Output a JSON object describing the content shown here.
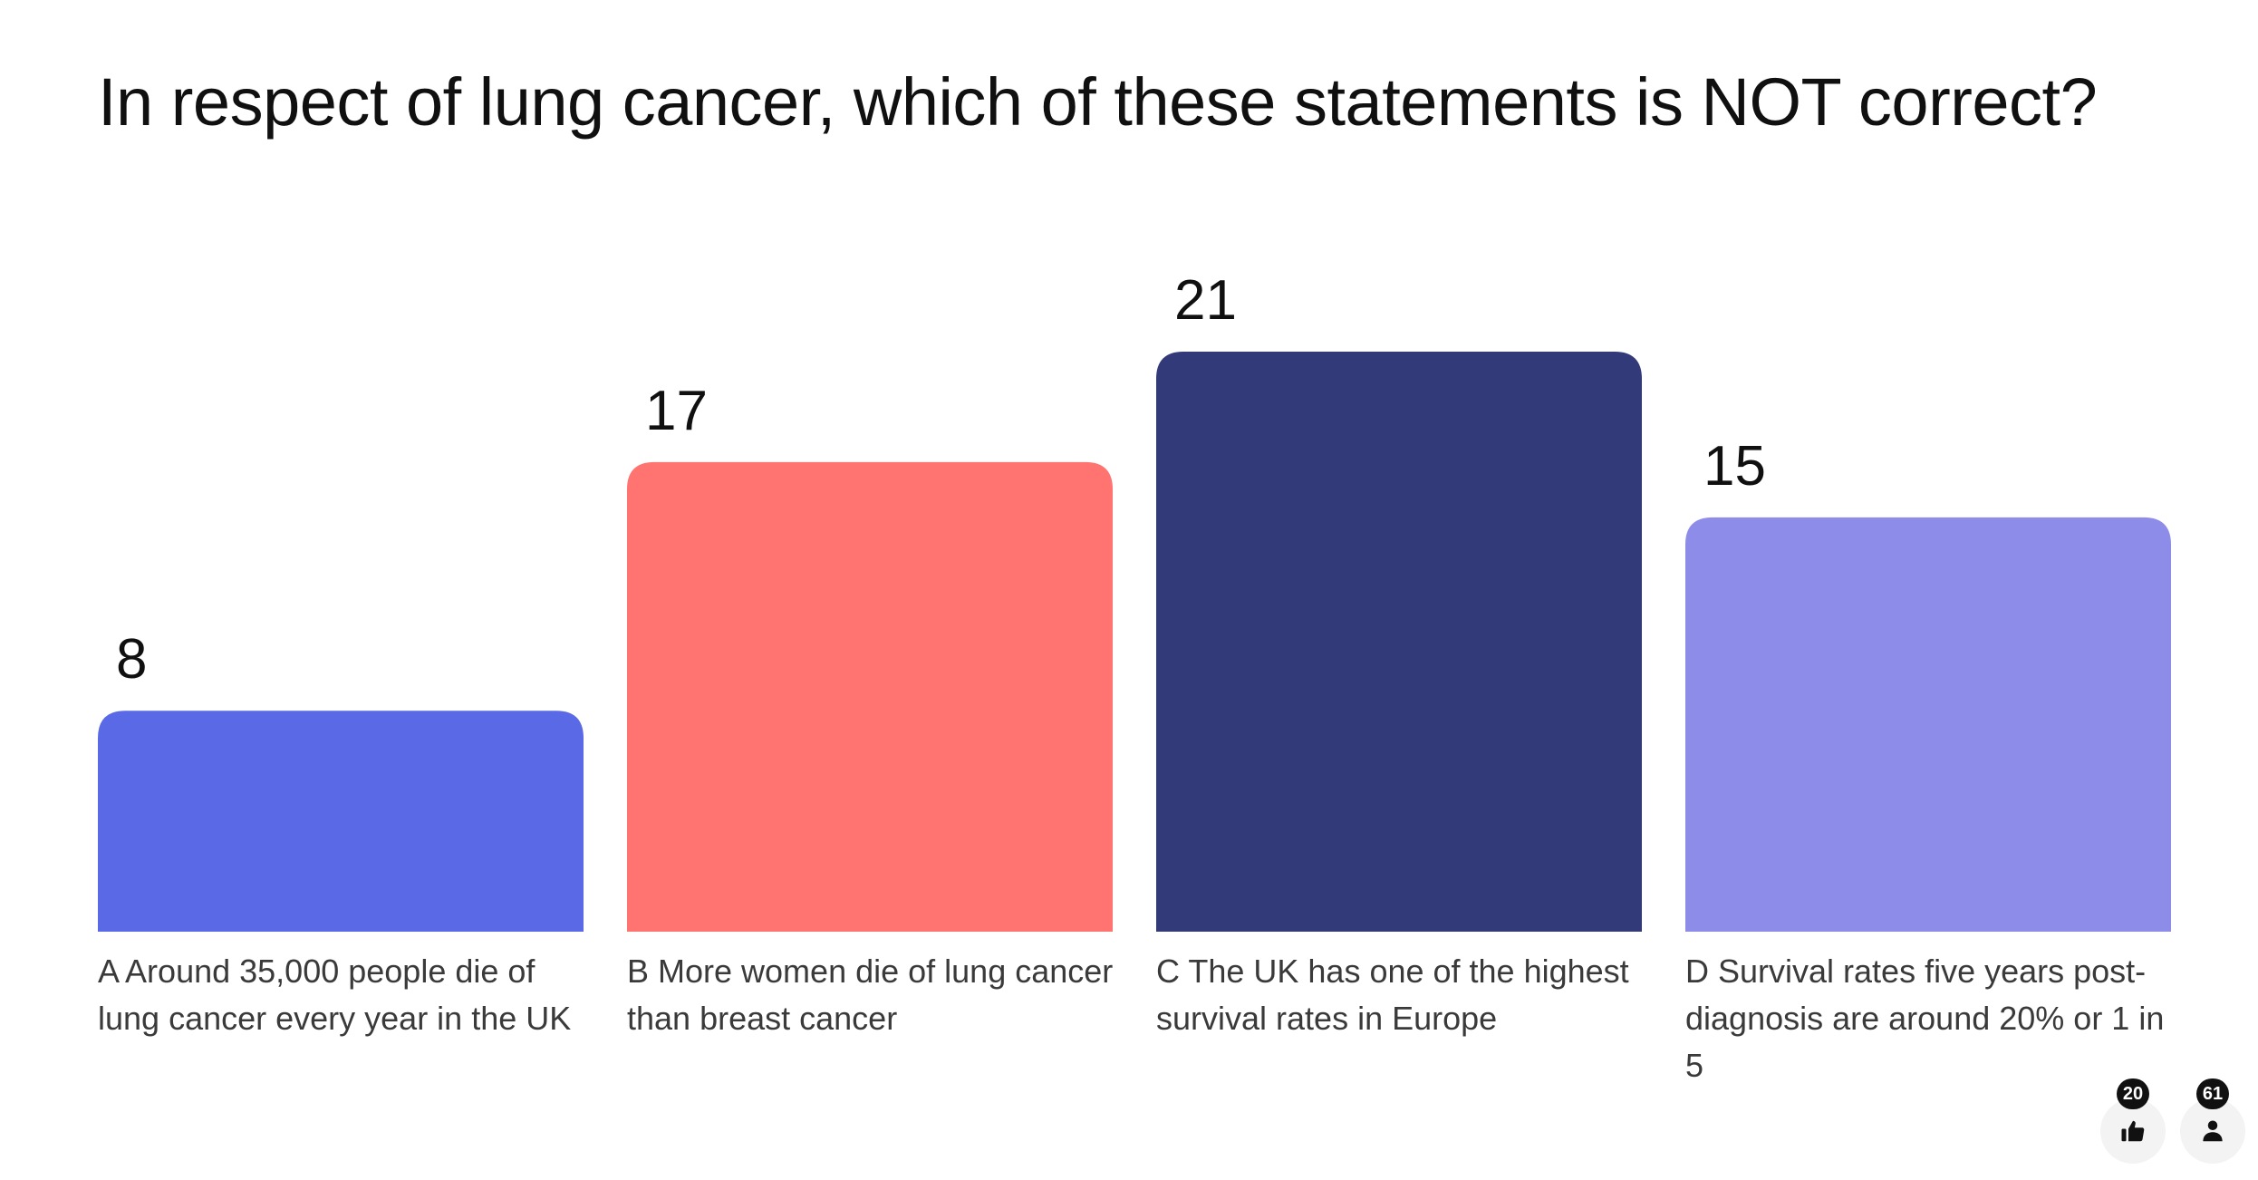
{
  "question": "In respect of lung cancer, which of these statements is NOT correct?",
  "chart_data": {
    "type": "bar",
    "categories": [
      "A Around 35,000 people die of lung cancer every year in the UK",
      "B More women die of lung cancer than breast cancer",
      "C The UK has one of the highest survival rates in Europe",
      "D Survival rates five years post-diagnosis are around 20% or 1 in 5"
    ],
    "values": [
      8,
      17,
      21,
      15
    ],
    "value_labels": [
      "8",
      "17",
      "21",
      "15"
    ],
    "colors": [
      "#5a6ae6",
      "#ff7370",
      "#323a7a",
      "#8e8ce9"
    ],
    "ylim": [
      0,
      21
    ],
    "grid": false,
    "legend": "none"
  },
  "reactions": {
    "likes": "20",
    "participants": "61",
    "likes_icon": "thumbs-up-icon",
    "participants_icon": "person-icon"
  }
}
